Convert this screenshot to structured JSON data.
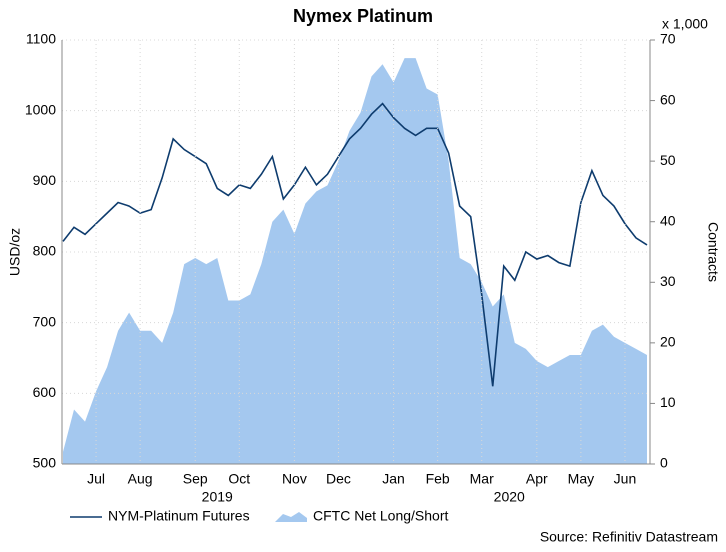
{
  "chart_data": {
    "type": "line-area",
    "title": "Nymex Platinum",
    "y_label": "USD/oz",
    "y2_label": "Contracts",
    "y2_unit": "x 1,000",
    "source": "Source: Refinitiv Datastream",
    "years": [
      "2019",
      "2020"
    ],
    "categories": [
      null,
      null,
      null,
      "Jul",
      null,
      null,
      null,
      "Aug",
      null,
      null,
      null,
      null,
      "Sep",
      null,
      null,
      null,
      "Oct",
      null,
      null,
      null,
      null,
      "Nov",
      null,
      null,
      null,
      "Dec",
      null,
      null,
      null,
      null,
      "Jan",
      null,
      null,
      null,
      "Feb",
      null,
      null,
      null,
      "Mar",
      null,
      null,
      null,
      null,
      "Apr",
      null,
      null,
      null,
      "May",
      null,
      null,
      null,
      "Jun",
      null,
      null
    ],
    "series": [
      {
        "name": "NYM-Platinum Futures",
        "color": "#0e3c6e",
        "axis": "y",
        "values": [
          815,
          835,
          825,
          840,
          855,
          870,
          865,
          855,
          860,
          905,
          960,
          945,
          935,
          925,
          890,
          880,
          895,
          890,
          910,
          935,
          875,
          895,
          920,
          895,
          910,
          935,
          960,
          975,
          995,
          1010,
          990,
          975,
          965,
          975,
          975,
          940,
          865,
          850,
          740,
          610,
          780,
          760,
          800,
          790,
          795,
          785,
          780,
          870,
          915,
          880,
          865,
          840,
          820,
          810
        ]
      },
      {
        "name": "CFTC Net Long/Short",
        "color": "#a4c8ef",
        "axis": "y2",
        "values": [
          2,
          9,
          7,
          12,
          16,
          22,
          25,
          22,
          22,
          20,
          25,
          33,
          34,
          33,
          34,
          27,
          27,
          28,
          33,
          40,
          42,
          38,
          43,
          45,
          46,
          50,
          55,
          58,
          64,
          66,
          63,
          67,
          67,
          62,
          61,
          50,
          34,
          33,
          30,
          26,
          28,
          20,
          19,
          17,
          16,
          17,
          18,
          18,
          22,
          23,
          21,
          20,
          19,
          18
        ]
      }
    ],
    "ylim": [
      500,
      1100
    ],
    "yticks": [
      500,
      600,
      700,
      800,
      900,
      1000,
      1100
    ],
    "y2lim": [
      0,
      70
    ],
    "y2ticks": [
      0,
      10,
      20,
      30,
      40,
      50,
      60,
      70
    ],
    "grid": true
  }
}
